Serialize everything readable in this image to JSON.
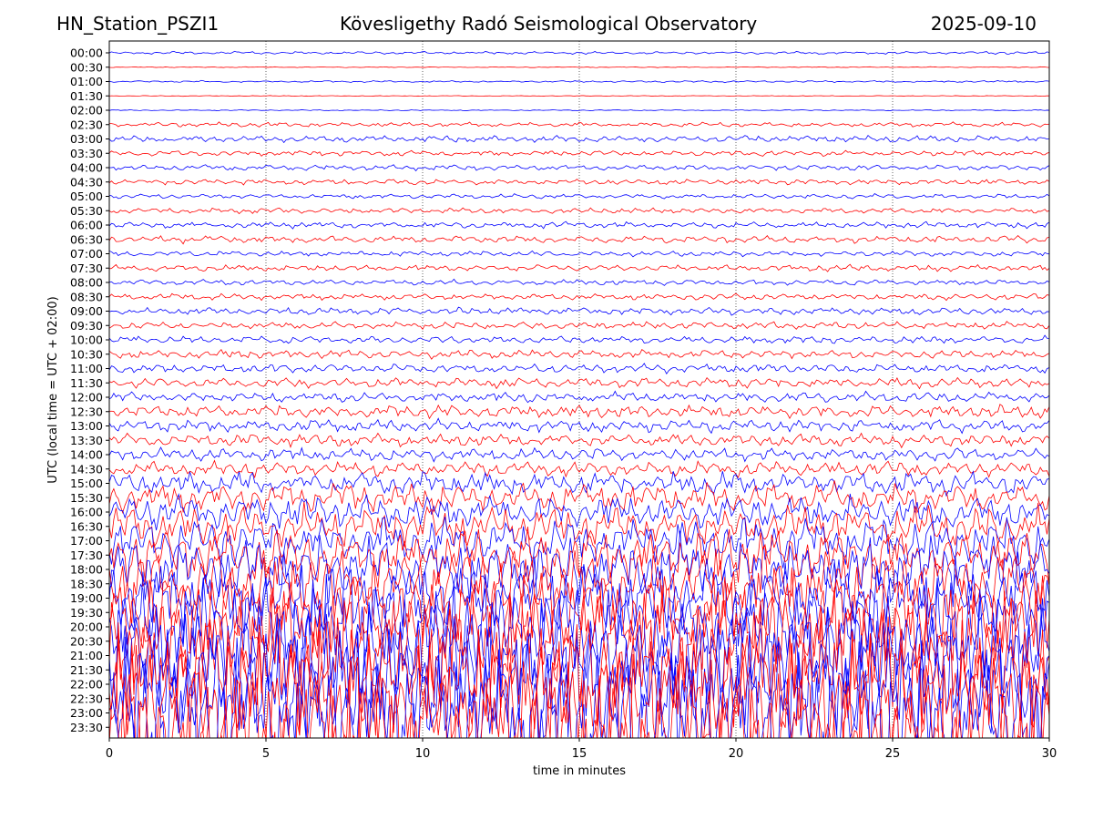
{
  "header": {
    "station": "HN_Station_PSZI1",
    "observatory": "Kövesligethy Radó Seismological Observatory",
    "date": "2025-09-10"
  },
  "chart_data": {
    "type": "line",
    "title": "Kövesligethy Radó Seismological Observatory",
    "xlabel": "time in minutes",
    "ylabel": "UTC (local time = UTC + 02:00)",
    "xlim": [
      0,
      30
    ],
    "xticks": [
      "0",
      "5",
      "10",
      "15",
      "20",
      "25",
      "30"
    ],
    "x_gridlines": [
      5,
      10,
      15,
      20,
      25
    ],
    "grid": "vertical dotted",
    "row_labels": [
      "00:00",
      "00:30",
      "01:00",
      "01:30",
      "02:00",
      "02:30",
      "03:00",
      "03:30",
      "04:00",
      "04:30",
      "05:00",
      "05:30",
      "06:00",
      "06:30",
      "07:00",
      "07:30",
      "08:00",
      "08:30",
      "09:00",
      "09:30",
      "10:00",
      "10:30",
      "11:00",
      "11:30",
      "12:00",
      "12:30",
      "13:00",
      "13:30",
      "14:00",
      "14:30",
      "15:00",
      "15:30",
      "16:00",
      "16:30",
      "17:00",
      "17:30",
      "18:00",
      "18:30",
      "19:00",
      "19:30",
      "20:00",
      "20:30",
      "21:00",
      "21:30",
      "22:00",
      "22:30",
      "23:00",
      "23:30"
    ],
    "trace_colors": [
      "#0000ff",
      "#ff0000"
    ],
    "row_amplitude": [
      0.15,
      0.05,
      0.1,
      0.04,
      0.06,
      0.25,
      0.35,
      0.3,
      0.3,
      0.3,
      0.25,
      0.3,
      0.35,
      0.4,
      0.3,
      0.35,
      0.3,
      0.35,
      0.4,
      0.4,
      0.4,
      0.45,
      0.5,
      0.55,
      0.55,
      0.7,
      0.7,
      0.7,
      0.7,
      0.8,
      1.2,
      1.6,
      1.8,
      2.2,
      2.6,
      3.0,
      3.5,
      4.0,
      4.5,
      5.0,
      5.5,
      6.0,
      6.5,
      7.0,
      7.5,
      8.0,
      8.0,
      8.0
    ]
  }
}
